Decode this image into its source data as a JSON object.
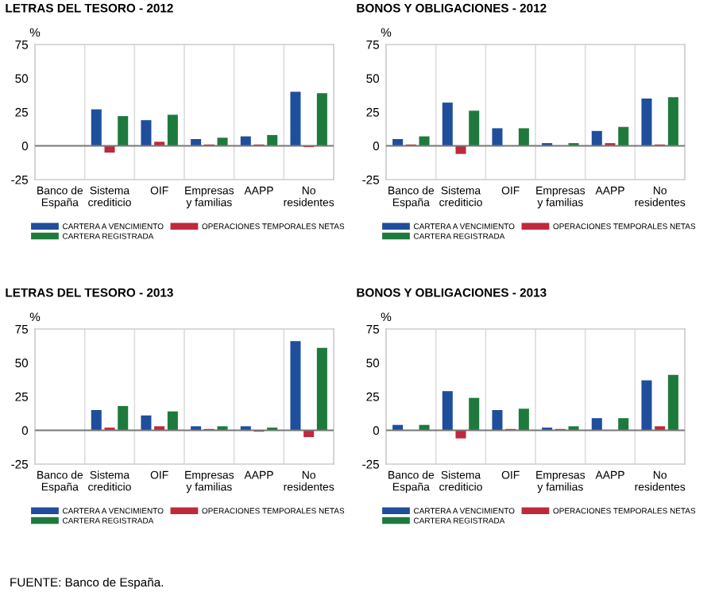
{
  "chart_data": [
    {
      "type": "bar",
      "title": "LETRAS DEL TESORO - 2012",
      "ylabel": "%",
      "categories": [
        "Banco de\nEspaña",
        "Sistema\ncrediticio",
        "OIF",
        "Empresas\ny familias",
        "AAPP",
        "No\nresidentes"
      ],
      "series": [
        {
          "name": "CARTERA A VENCIMIENTO",
          "color": "#1f4e9c",
          "values": [
            null,
            27,
            19,
            5,
            7,
            40
          ]
        },
        {
          "name": "OPERACIONES TEMPORALES NETAS",
          "color": "#c0283c",
          "values": [
            null,
            -5,
            3,
            1,
            1,
            -1
          ]
        },
        {
          "name": "CARTERA REGISTRADA",
          "color": "#1e7a3c",
          "values": [
            null,
            22,
            23,
            6,
            8,
            39
          ]
        }
      ],
      "ylim": [
        -25,
        75
      ],
      "yticks": [
        -25,
        0,
        25,
        50,
        75
      ],
      "grid": "x",
      "legend": "bottom",
      "ref_lines": [
        {
          "axis": "y",
          "value": 0
        }
      ]
    },
    {
      "type": "bar",
      "title": "BONOS Y OBLIGACIONES - 2012",
      "ylabel": "%",
      "categories": [
        "Banco de\nEspaña",
        "Sistema\ncrediticio",
        "OIF",
        "Empresas\ny familias",
        "AAPP",
        "No\nresidentes"
      ],
      "series": [
        {
          "name": "CARTERA A VENCIMIENTO",
          "color": "#1f4e9c",
          "values": [
            5,
            32,
            13,
            2,
            11,
            35
          ]
        },
        {
          "name": "OPERACIONES TEMPORALES NETAS",
          "color": "#c0283c",
          "values": [
            1,
            -6,
            0,
            0,
            2,
            1
          ]
        },
        {
          "name": "CARTERA REGISTRADA",
          "color": "#1e7a3c",
          "values": [
            7,
            26,
            13,
            2,
            14,
            36
          ]
        }
      ],
      "ylim": [
        -25,
        75
      ],
      "yticks": [
        -25,
        0,
        25,
        50,
        75
      ],
      "grid": "x",
      "legend": "bottom",
      "ref_lines": [
        {
          "axis": "y",
          "value": 0
        }
      ]
    },
    {
      "type": "bar",
      "title": "LETRAS DEL TESORO - 2013",
      "ylabel": "%",
      "categories": [
        "Banco de\nEspaña",
        "Sistema\ncrediticio",
        "OIF",
        "Empresas\ny familias",
        "AAPP",
        "No\nresidentes"
      ],
      "series": [
        {
          "name": "CARTERA A VENCIMIENTO",
          "color": "#1f4e9c",
          "values": [
            null,
            15,
            11,
            3,
            3,
            66
          ]
        },
        {
          "name": "OPERACIONES TEMPORALES NETAS",
          "color": "#c0283c",
          "values": [
            null,
            2,
            3,
            1,
            -1,
            -5
          ]
        },
        {
          "name": "CARTERA REGISTRADA",
          "color": "#1e7a3c",
          "values": [
            null,
            18,
            14,
            3,
            2,
            61
          ]
        }
      ],
      "ylim": [
        -25,
        75
      ],
      "yticks": [
        -25,
        0,
        25,
        50,
        75
      ],
      "grid": "x",
      "legend": "bottom",
      "ref_lines": [
        {
          "axis": "y",
          "value": 0
        }
      ],
      "annotations": [
        "FUENTE: Banco de España."
      ]
    },
    {
      "type": "bar",
      "title": "BONOS Y OBLIGACIONES - 2013",
      "ylabel": "%",
      "categories": [
        "Banco de\nEspaña",
        "Sistema\ncrediticio",
        "OIF",
        "Empresas\ny familias",
        "AAPP",
        "No\nresidentes"
      ],
      "series": [
        {
          "name": "CARTERA A VENCIMIENTO",
          "color": "#1f4e9c",
          "values": [
            4,
            29,
            15,
            2,
            9,
            37
          ]
        },
        {
          "name": "OPERACIONES TEMPORALES NETAS",
          "color": "#c0283c",
          "values": [
            0,
            -6,
            1,
            1,
            0,
            3
          ]
        },
        {
          "name": "CARTERA REGISTRADA",
          "color": "#1e7a3c",
          "values": [
            4,
            24,
            16,
            3,
            9,
            41
          ]
        }
      ],
      "ylim": [
        -25,
        75
      ],
      "yticks": [
        -25,
        0,
        25,
        50,
        75
      ],
      "grid": "x",
      "legend": "bottom",
      "ref_lines": [
        {
          "axis": "y",
          "value": 0
        }
      ]
    }
  ]
}
